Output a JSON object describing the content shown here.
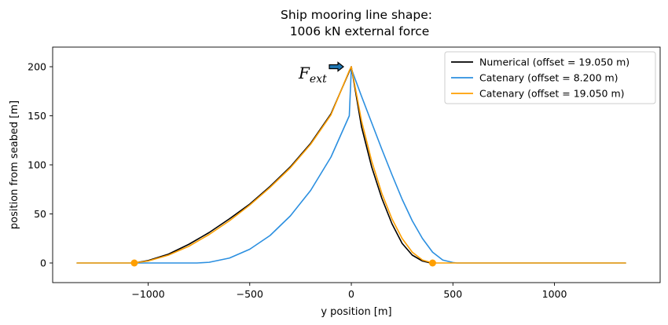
{
  "chart_data": {
    "type": "line",
    "title_line1": "Ship mooring line shape:",
    "title_line2": "1006 kN external force",
    "xlabel": "y position [m]",
    "ylabel": "position from seabed [m]",
    "xlim": [
      -1470,
      1520
    ],
    "ylim": [
      -20,
      220
    ],
    "xticks": [
      -1000,
      -500,
      0,
      500,
      1000
    ],
    "xtick_labels": [
      "−1000",
      "−500",
      "0",
      "500",
      "1000"
    ],
    "yticks": [
      0,
      50,
      100,
      150,
      200
    ],
    "ytick_labels": [
      "0",
      "50",
      "100",
      "150",
      "200"
    ],
    "grid": false,
    "legend_position": "top-right",
    "annotation": {
      "base": "F",
      "subscript": "ext",
      "arrow": "right"
    },
    "fairlead": [
      0,
      200
    ],
    "series": [
      {
        "name": "Numerical (offset = 19.050 m)",
        "color": "#000000",
        "x": [
          -1068,
          -1000,
          -900,
          -800,
          -700,
          -600,
          -500,
          -400,
          -300,
          -200,
          -100,
          0,
          50,
          100,
          150,
          200,
          250,
          300,
          350,
          390
        ],
        "y": [
          0,
          2.5,
          9,
          19,
          31,
          45,
          60,
          78,
          98,
          122,
          152,
          200,
          139,
          98,
          66,
          40,
          20,
          8,
          2,
          0
        ]
      },
      {
        "name": "Catenary (offset = 8.200 m)",
        "color": "#2b8fe0",
        "x": [
          -1350,
          -760,
          -700,
          -600,
          -500,
          -400,
          -300,
          -200,
          -100,
          -10,
          0,
          50,
          100,
          150,
          200,
          250,
          300,
          350,
          400,
          450,
          500,
          520,
          1350
        ],
        "y": [
          0,
          0,
          0.7,
          5,
          14,
          28,
          48,
          74,
          108,
          150,
          198,
          170,
          143,
          116,
          90,
          65,
          43,
          25,
          11,
          3,
          0.5,
          0,
          0
        ],
        "markers": []
      },
      {
        "name": "Catenary (offset = 19.050 m)",
        "color": "#ff9f00",
        "x": [
          -1350,
          -1068,
          -1000,
          -900,
          -800,
          -700,
          -600,
          -500,
          -400,
          -300,
          -200,
          -100,
          -10,
          0,
          50,
          100,
          150,
          200,
          250,
          300,
          350,
          400,
          1350
        ],
        "y": [
          0,
          0,
          2,
          8,
          17,
          29,
          43,
          59,
          77,
          97,
          121,
          151,
          196,
          200,
          145,
          104,
          71,
          45,
          25,
          11,
          3,
          0,
          0
        ],
        "markers": [
          [
            -1068,
            0
          ],
          [
            400,
            0
          ]
        ]
      }
    ]
  }
}
